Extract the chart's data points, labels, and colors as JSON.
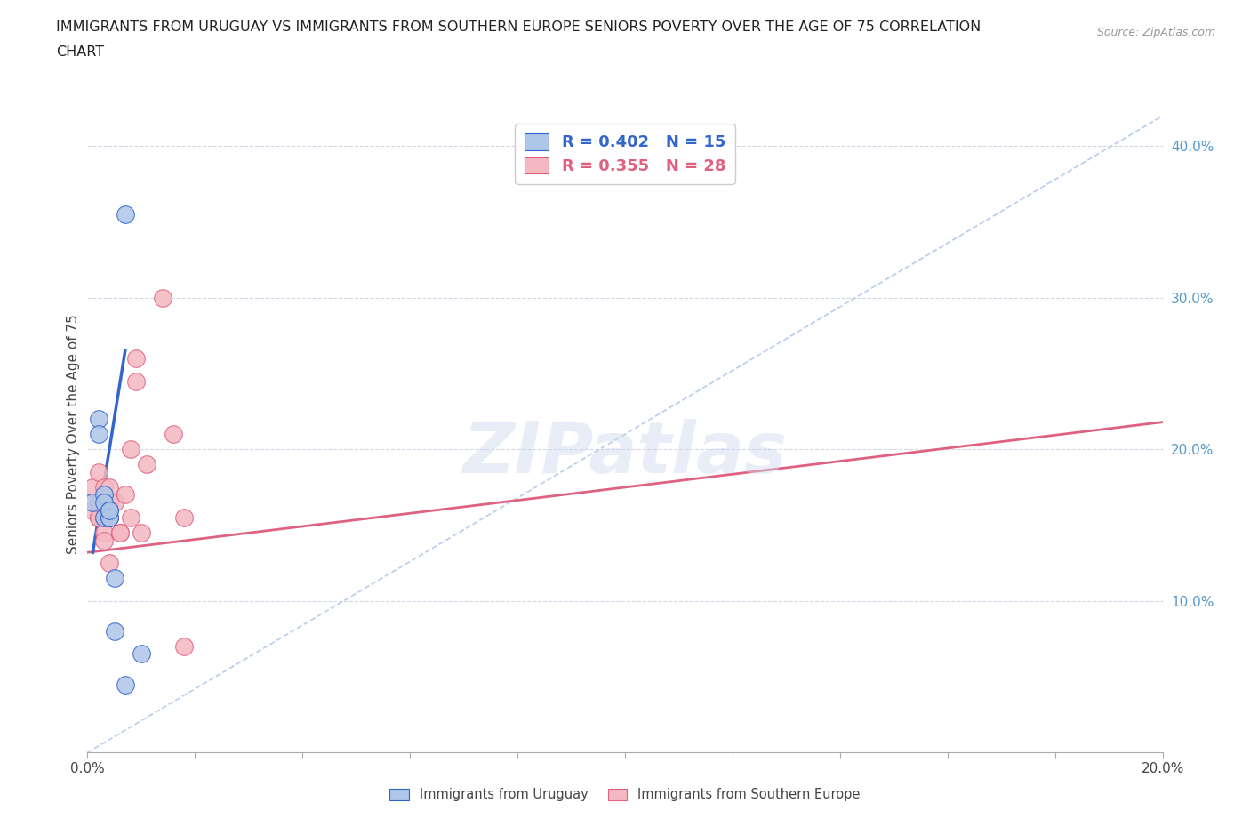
{
  "title_line1": "IMMIGRANTS FROM URUGUAY VS IMMIGRANTS FROM SOUTHERN EUROPE SENIORS POVERTY OVER THE AGE OF 75 CORRELATION",
  "title_line2": "CHART",
  "source": "Source: ZipAtlas.com",
  "ylabel": "Seniors Poverty Over the Age of 75",
  "xlim": [
    0.0,
    0.2
  ],
  "ylim": [
    0.0,
    0.42
  ],
  "background_color": "#ffffff",
  "grid_color": "#d0d8e8",
  "uruguay_color": "#aec6e8",
  "southern_europe_color": "#f4b8c1",
  "uruguay_line_color": "#3366cc",
  "southern_europe_line_color": "#e06080",
  "diagonal_color": "#b0c8e8",
  "watermark": "ZIPatlas",
  "uruguay_points_x": [
    0.001,
    0.002,
    0.002,
    0.003,
    0.003,
    0.003,
    0.004,
    0.004,
    0.004,
    0.004,
    0.005,
    0.005,
    0.007,
    0.007,
    0.01
  ],
  "uruguay_points_y": [
    0.165,
    0.22,
    0.21,
    0.17,
    0.165,
    0.155,
    0.16,
    0.155,
    0.155,
    0.16,
    0.115,
    0.08,
    0.355,
    0.045,
    0.065
  ],
  "southern_europe_points_x": [
    0.001,
    0.001,
    0.002,
    0.002,
    0.002,
    0.002,
    0.003,
    0.003,
    0.003,
    0.003,
    0.004,
    0.004,
    0.004,
    0.004,
    0.005,
    0.006,
    0.006,
    0.007,
    0.008,
    0.008,
    0.009,
    0.009,
    0.01,
    0.011,
    0.014,
    0.016,
    0.018,
    0.018
  ],
  "southern_europe_points_y": [
    0.16,
    0.175,
    0.155,
    0.155,
    0.165,
    0.185,
    0.155,
    0.175,
    0.145,
    0.14,
    0.165,
    0.155,
    0.125,
    0.175,
    0.165,
    0.145,
    0.145,
    0.17,
    0.2,
    0.155,
    0.245,
    0.26,
    0.145,
    0.19,
    0.3,
    0.21,
    0.07,
    0.155
  ],
  "uruguay_trend_x": [
    0.001,
    0.007
  ],
  "uruguay_trend_y": [
    0.132,
    0.265
  ],
  "southern_europe_trend_x": [
    0.0,
    0.2
  ],
  "southern_europe_trend_y": [
    0.132,
    0.218
  ],
  "legend_entries": [
    {
      "label": "R = 0.402   N = 15",
      "color": "#3366cc",
      "face": "#aec6e8"
    },
    {
      "label": "R = 0.355   N = 28",
      "color": "#e06080",
      "face": "#f4b8c1"
    }
  ],
  "bottom_legend": [
    {
      "label": "Immigrants from Uruguay",
      "color": "#3366cc",
      "face": "#aec6e8"
    },
    {
      "label": "Immigrants from Southern Europe",
      "color": "#e06080",
      "face": "#f4b8c1"
    }
  ]
}
